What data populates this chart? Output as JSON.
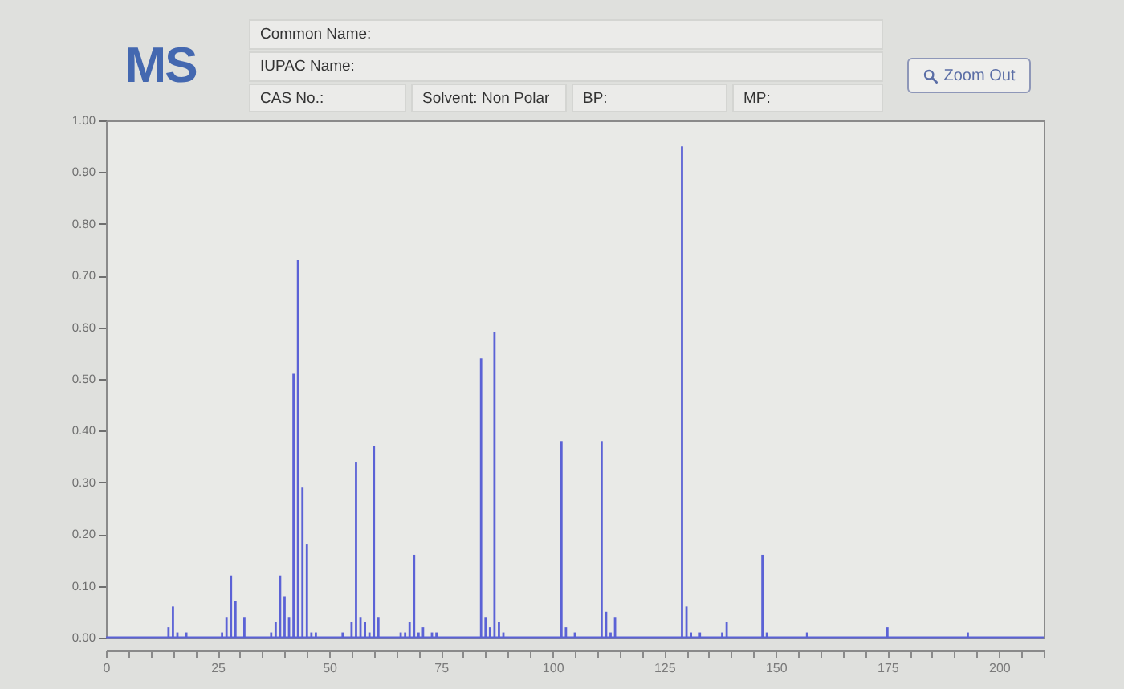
{
  "chart_data": {
    "type": "bar",
    "title": "MS",
    "annotations": [
      "Common Name:",
      "IUPAC Name:",
      "CAS No.:",
      "Solvent: Non Polar",
      "BP:",
      "MP:",
      "Zoom Out"
    ],
    "x": [
      14,
      15,
      16,
      18,
      26,
      27,
      28,
      29,
      31,
      37,
      38,
      39,
      40,
      41,
      42,
      43,
      44,
      45,
      46,
      47,
      53,
      55,
      56,
      57,
      58,
      59,
      60,
      61,
      66,
      67,
      68,
      69,
      70,
      71,
      73,
      74,
      84,
      85,
      86,
      87,
      88,
      89,
      102,
      103,
      105,
      111,
      112,
      113,
      114,
      129,
      130,
      131,
      133,
      138,
      139,
      147,
      148,
      157,
      175,
      193
    ],
    "values": [
      0.02,
      0.06,
      0.01,
      0.01,
      0.01,
      0.04,
      0.12,
      0.07,
      0.04,
      0.01,
      0.03,
      0.12,
      0.08,
      0.04,
      0.51,
      0.73,
      0.29,
      0.18,
      0.01,
      0.01,
      0.01,
      0.03,
      0.34,
      0.04,
      0.03,
      0.01,
      0.37,
      0.04,
      0.01,
      0.01,
      0.03,
      0.16,
      0.01,
      0.02,
      0.01,
      0.01,
      0.54,
      0.04,
      0.02,
      0.59,
      0.03,
      0.01,
      0.38,
      0.02,
      0.01,
      0.38,
      0.05,
      0.01,
      0.04,
      0.95,
      0.06,
      0.01,
      0.01,
      0.01,
      0.03,
      0.16,
      0.01,
      0.01,
      0.02,
      0.01
    ],
    "color": "#5b62d6",
    "xlim": [
      0,
      210
    ],
    "xticks": [
      0,
      {
        "value": 5,
        "label": null
      },
      {
        "value": 10,
        "label": null
      },
      {
        "value": 15,
        "label": null
      },
      {
        "value": 20,
        "label": null
      },
      25,
      {
        "value": 30,
        "label": null
      },
      {
        "value": 35,
        "label": null
      },
      {
        "value": 40,
        "label": null
      },
      {
        "value": 45,
        "label": null
      },
      50,
      {
        "value": 55,
        "label": null
      },
      {
        "value": 60,
        "label": null
      },
      {
        "value": 65,
        "label": null
      },
      {
        "value": 70,
        "label": null
      },
      75,
      {
        "value": 80,
        "label": null
      },
      {
        "value": 85,
        "label": null
      },
      {
        "value": 90,
        "label": null
      },
      {
        "value": 95,
        "label": null
      },
      100,
      {
        "value": 105,
        "label": null
      },
      {
        "value": 110,
        "label": null
      },
      {
        "value": 115,
        "label": null
      },
      {
        "value": 120,
        "label": null
      },
      125,
      {
        "value": 130,
        "label": null
      },
      {
        "value": 135,
        "label": null
      },
      {
        "value": 140,
        "label": null
      },
      {
        "value": 145,
        "label": null
      },
      150,
      {
        "value": 155,
        "label": null
      },
      {
        "value": 160,
        "label": null
      },
      {
        "value": 165,
        "label": null
      },
      {
        "value": 170,
        "label": null
      },
      175,
      {
        "value": 180,
        "label": null
      },
      {
        "value": 185,
        "label": null
      },
      {
        "value": 190,
        "label": null
      },
      {
        "value": 195,
        "label": null
      },
      200,
      {
        "value": 205,
        "label": null
      },
      {
        "value": 210,
        "label": null
      }
    ],
    "ylim": [
      0,
      1
    ],
    "yticks": [
      {
        "value": 0,
        "label": "0.00"
      },
      {
        "value": 0.1,
        "label": "0.10"
      },
      {
        "value": 0.2,
        "label": "0.20"
      },
      {
        "value": 0.3,
        "label": "0.30"
      },
      {
        "value": 0.4,
        "label": "0.40"
      },
      {
        "value": 0.5,
        "label": "0.50"
      },
      {
        "value": 0.6,
        "label": "0.60"
      },
      {
        "value": 0.7,
        "label": "0.70"
      },
      {
        "value": 0.8,
        "label": "0.80"
      },
      {
        "value": 0.9,
        "label": "0.90"
      },
      {
        "value": 1,
        "label": "1.00"
      }
    ],
    "ref_lines": [
      {
        "axis": "y",
        "value": 0,
        "color": "#5b62d6"
      }
    ]
  }
}
